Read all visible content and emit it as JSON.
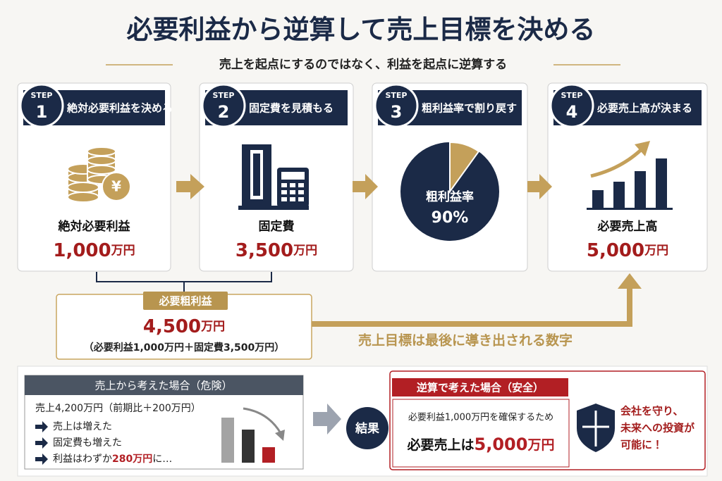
{
  "header": {
    "title": "必要利益から逆算して売上目標を決める",
    "subtitle": "売上を起点にするのではなく、利益を起点に逆算する"
  },
  "steps": [
    {
      "badge": "STEP",
      "number": "1",
      "heading": "絶対必要利益を決める",
      "label": "絶対必要利益",
      "value": "1,000",
      "unit": "万円"
    },
    {
      "badge": "STEP",
      "number": "2",
      "heading": "固定費を見積もる",
      "label": "固定費",
      "value": "3,500",
      "unit": "万円"
    },
    {
      "badge": "STEP",
      "number": "3",
      "heading": "粗利益率で割り戻す",
      "label": "粗利益率",
      "value": "90%"
    },
    {
      "badge": "STEP",
      "number": "4",
      "heading": "必要売上高が決まる",
      "label": "必要売上高",
      "value": "5,000",
      "unit": "万円"
    }
  ],
  "summary": {
    "tag": "必要粗利益",
    "value": "4,500",
    "unit": "万円",
    "note": "（必要利益1,000万円＋固定費3,500万円）"
  },
  "caption": "売上目標は最後に導き出される数字",
  "danger": {
    "header": "売上から考えた場合（危険）",
    "line": "売上4,200万円（前期比＋200万円）",
    "bullets": [
      {
        "text": "売上は増えた"
      },
      {
        "text": "固定費も増えた"
      },
      {
        "text": "利益はわずか",
        "highlight": "280万円",
        "tail": "に…"
      }
    ]
  },
  "result": "結果",
  "safe": {
    "header": "逆算で考えた場合（安全）",
    "line": "必要利益1,000万円を確保するため",
    "lead": "必要売上は",
    "value": "5,000",
    "unit": "万円"
  },
  "benefit": [
    "会社を守り、",
    "未来への投資が",
    "可能に！"
  ]
}
